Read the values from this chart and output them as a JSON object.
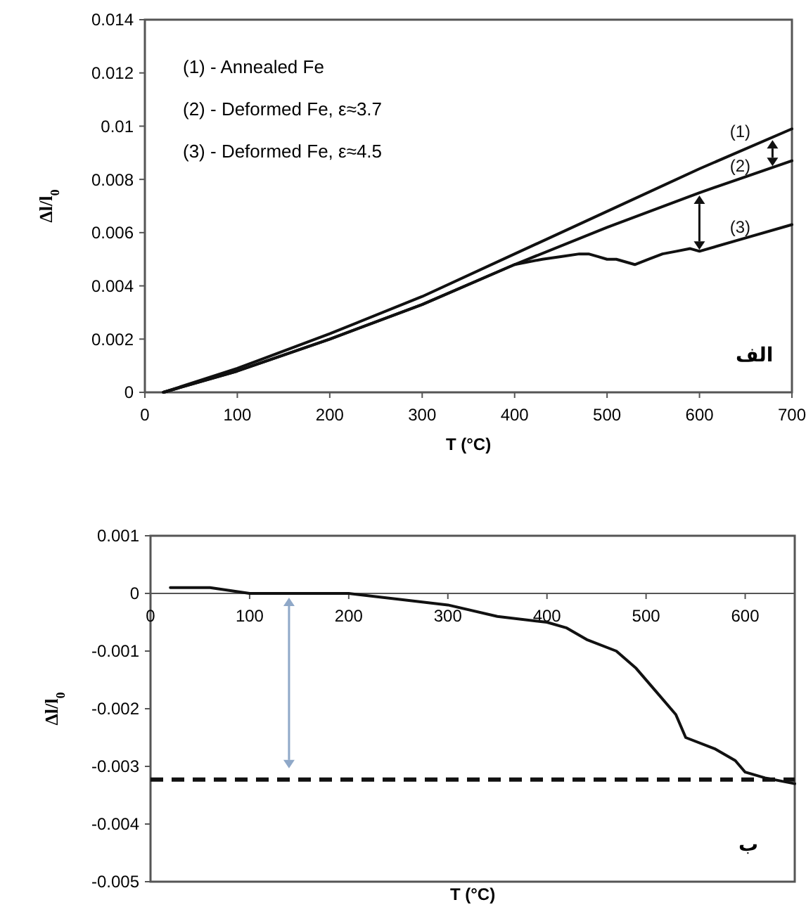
{
  "chart_data": [
    {
      "type": "line",
      "xlabel": "T (°C)",
      "ylabel": "Δl/l$_{0}$",
      "xlim": [
        0,
        700
      ],
      "ylim": [
        0,
        0.014
      ],
      "xticks": [
        0,
        100,
        200,
        300,
        400,
        500,
        600,
        700
      ],
      "yticks": [
        0,
        0.002,
        0.004,
        0.006,
        0.008,
        0.01,
        0.012,
        0.014
      ],
      "grid": false,
      "marker": "none",
      "line_style": "solid",
      "annotations": [
        "(1)  - Annealed Fe",
        "(2)  - Deformed Fe, ε≈3.7",
        "(3)  - Deformed Fe, ε≈4.5",
        "الف"
      ],
      "series": [
        {
          "name": "(1)",
          "color": "#111111",
          "x": [
            20,
            100,
            200,
            300,
            400,
            500,
            600,
            700
          ],
          "values": [
            0,
            0.0009,
            0.0022,
            0.0036,
            0.0052,
            0.0068,
            0.0084,
            0.0099
          ]
        },
        {
          "name": "(2)",
          "color": "#111111",
          "x": [
            20,
            100,
            200,
            300,
            400,
            500,
            600,
            700
          ],
          "values": [
            0,
            0.0008,
            0.002,
            0.0033,
            0.0048,
            0.0062,
            0.0075,
            0.0087
          ]
        },
        {
          "name": "(3)",
          "color": "#111111",
          "x": [
            20,
            100,
            200,
            300,
            400,
            430,
            450,
            470,
            480,
            490,
            500,
            510,
            520,
            530,
            545,
            560,
            575,
            590,
            600,
            650,
            700
          ],
          "values": [
            0,
            0.0008,
            0.002,
            0.0033,
            0.0048,
            0.005,
            0.0051,
            0.0052,
            0.0052,
            0.0051,
            0.005,
            0.005,
            0.0049,
            0.0048,
            0.005,
            0.0052,
            0.0053,
            0.0054,
            0.0053,
            0.0058,
            0.0063
          ]
        }
      ]
    },
    {
      "type": "line",
      "xlabel": "T (°C)",
      "ylabel": "Δl/l$_{0}$",
      "xlim": [
        0,
        650
      ],
      "ylim": [
        -0.005,
        0.001
      ],
      "xticks": [
        0,
        100,
        200,
        300,
        400,
        500,
        600
      ],
      "yticks": [
        -0.005,
        -0.004,
        -0.003,
        -0.002,
        -0.001,
        0,
        0.001
      ],
      "grid": false,
      "marker": "none",
      "line_style": "solid",
      "annotations": [
        "ب"
      ],
      "ref_lines": [
        {
          "axis": "y",
          "value": -0.00323,
          "color": "#111111",
          "line_style": "dashed"
        }
      ],
      "series": [
        {
          "color": "#111111",
          "x": [
            20,
            60,
            100,
            150,
            200,
            250,
            300,
            350,
            400,
            420,
            440,
            470,
            490,
            510,
            530,
            540,
            570,
            590,
            600,
            620,
            650
          ],
          "values": [
            0.0001,
            0.0001,
            0,
            0,
            0,
            -0.0001,
            -0.0002,
            -0.0004,
            -0.0005,
            -0.0006,
            -0.0008,
            -0.001,
            -0.0013,
            -0.0017,
            -0.0021,
            -0.0025,
            -0.0027,
            -0.0029,
            -0.0031,
            -0.0032,
            -0.0033
          ]
        }
      ]
    }
  ]
}
